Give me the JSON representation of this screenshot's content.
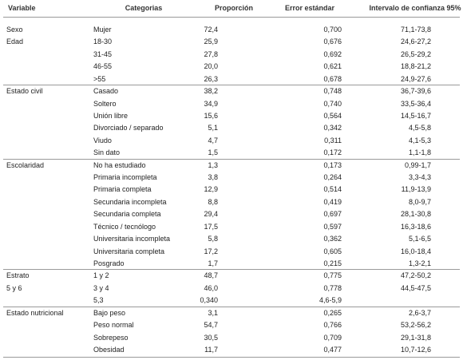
{
  "table": {
    "headers": [
      "Variable",
      "Categorias",
      "Proporción",
      "Error estándar",
      "Intervalo de confianza 95%"
    ],
    "rows": [
      [
        "Sexo",
        "Mujer",
        "72,4",
        "0,700",
        "71,1-73,8"
      ],
      [
        "Edad",
        "18-30",
        "25,9",
        "0,676",
        "24,6-27,2"
      ],
      [
        null,
        "31-45",
        "27,8",
        "0,692",
        "26,5-29,2"
      ],
      [
        null,
        "46-55",
        "20,0",
        "0,621",
        "18,8-21,2"
      ],
      [
        null,
        ">55",
        "26,3",
        "0,678",
        "24,9-27,6"
      ],
      [
        "Estado civil",
        "Casado",
        "38,2",
        "0,748",
        "36,7-39,6"
      ],
      [
        null,
        "Soltero",
        "34,9",
        "0,740",
        "33,5-36,4"
      ],
      [
        null,
        "Unión libre",
        "15,6",
        "0,564",
        "14,5-16,7"
      ],
      [
        null,
        "Divorciado / separado",
        "5,1",
        "0,342",
        "4,5-5,8"
      ],
      [
        null,
        "Viudo",
        "4,7",
        "0,311",
        "4,1-5,3"
      ],
      [
        null,
        "Sin dato",
        "1,5",
        "0,172",
        "1,1-1,8"
      ],
      [
        "Escolaridad",
        "No ha estudiado",
        "1,3",
        "0,173",
        "0,99-1,7"
      ],
      [
        null,
        "Primaria incompleta",
        "3,8",
        "0,264",
        "3,3-4,3"
      ],
      [
        null,
        "Primaria completa",
        "12,9",
        "0,514",
        "11,9-13,9"
      ],
      [
        null,
        "Secundaria incompleta",
        "8,8",
        "0,419",
        "8,0-9,7"
      ],
      [
        null,
        "Secundaria completa",
        "29,4",
        "0,697",
        "28,1-30,8"
      ],
      [
        null,
        "Técnico / tecnólogo",
        "17,5",
        "0,597",
        "16,3-18,6"
      ],
      [
        null,
        "Universitaria incompleta",
        "5,8",
        "0,362",
        "5,1-6,5"
      ],
      [
        null,
        "Universitaria completa",
        "17,2",
        "0,605",
        "16,0-18,4"
      ],
      [
        null,
        "Posgrado",
        "1,7",
        "0,215",
        "1,3-2,1"
      ],
      [
        "Estrato",
        "1 y 2",
        "48,7",
        "0,775",
        "47,2-50,2"
      ],
      [
        "5 y 6",
        "3 y 4",
        "46,0",
        "0,778",
        "44,5-47,5"
      ],
      [
        null,
        "5,3",
        "0,340",
        "4,6-5,9",
        null
      ],
      [
        "Estado nutricional",
        "Bajo peso",
        "3,1",
        "0,265",
        "2,6-3,7"
      ],
      [
        null,
        "Peso normal",
        "54,7",
        "0,766",
        "53,2-56,2"
      ],
      [
        null,
        "Sobrepeso",
        "30,5",
        "0,709",
        "29,1-31,8"
      ],
      [
        null,
        "Obesidad",
        "11,7",
        "0,477",
        "10,7-12,6"
      ]
    ]
  }
}
